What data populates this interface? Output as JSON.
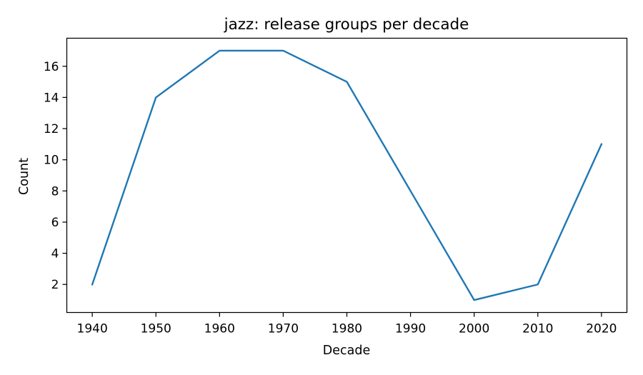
{
  "chart_data": {
    "type": "line",
    "title": "jazz: release groups per decade",
    "xlabel": "Decade",
    "ylabel": "Count",
    "x": [
      1940,
      1950,
      1960,
      1970,
      1980,
      1990,
      2000,
      2010,
      2020
    ],
    "x_ticks": [
      1940,
      1950,
      1960,
      1970,
      1980,
      1990,
      2000,
      2010,
      2020
    ],
    "y_ticks": [
      2,
      4,
      6,
      8,
      10,
      12,
      14,
      16
    ],
    "xlim": [
      1936,
      2024
    ],
    "ylim": [
      0.2,
      17.8
    ],
    "grid": false,
    "series": [
      {
        "color": "#1f77b4",
        "values": [
          2,
          14,
          17,
          17,
          15,
          8,
          1,
          2,
          11
        ]
      }
    ]
  }
}
